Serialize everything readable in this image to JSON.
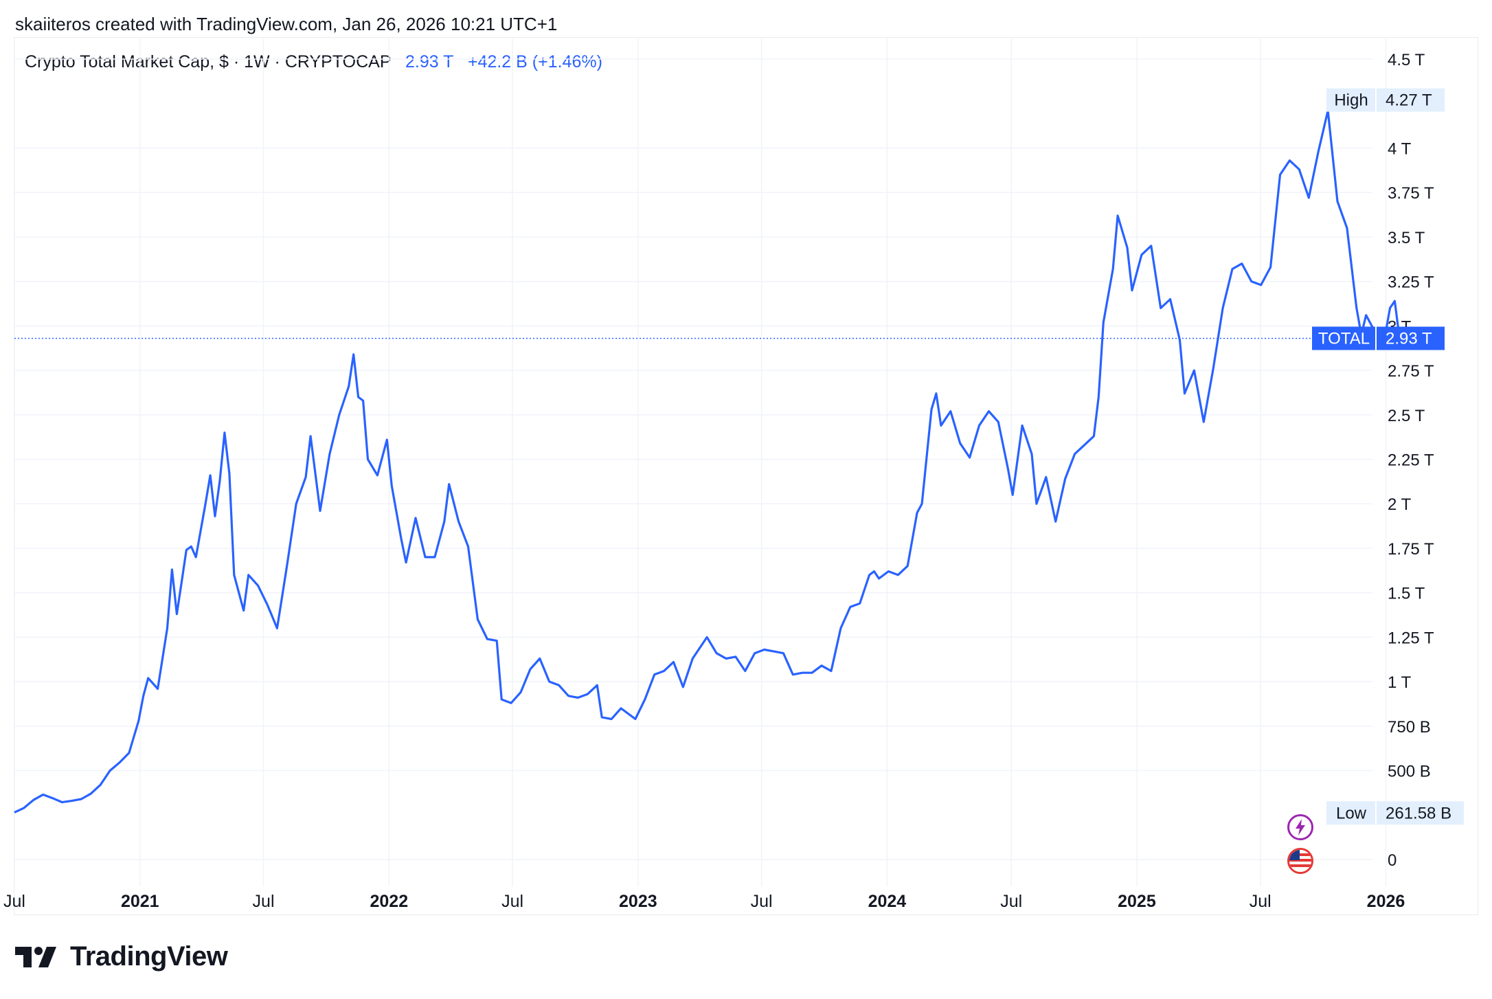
{
  "header": {
    "credit": "skaiiteros created with TradingView.com, Jan 26, 2026 10:21 UTC+1"
  },
  "legend": {
    "symbol": "Crypto Total Market Cap, $ · 1W · CRYPTOCAP",
    "value": "2.93 T",
    "change": "+42.2 B (+1.46%)"
  },
  "footer": {
    "brand": "TradingView"
  },
  "colors": {
    "line": "#2962ff",
    "grid": "#f0f3fa",
    "text": "#131722",
    "badge_bg": "#e3effd"
  },
  "icons": {
    "lightning": "lightning-icon",
    "flag": "us-flag-icon"
  },
  "chart_data": {
    "type": "line",
    "title": "Crypto Total Market Cap, $ · 1W · CRYPTOCAP",
    "y_unit": "USD",
    "ylim": [
      0,
      4500000000000
    ],
    "xlim": [
      "2020-07-01",
      "2026-03-15"
    ],
    "grid": true,
    "y_ticks": [
      {
        "value": 0,
        "label": "0"
      },
      {
        "value": 500000000000,
        "label": "500 B"
      },
      {
        "value": 750000000000,
        "label": "750 B"
      },
      {
        "value": 1000000000000,
        "label": "1 T"
      },
      {
        "value": 1250000000000,
        "label": "1.25 T"
      },
      {
        "value": 1500000000000,
        "label": "1.5 T"
      },
      {
        "value": 1750000000000,
        "label": "1.75 T"
      },
      {
        "value": 2000000000000,
        "label": "2 T"
      },
      {
        "value": 2250000000000,
        "label": "2.25 T"
      },
      {
        "value": 2500000000000,
        "label": "2.5 T"
      },
      {
        "value": 2750000000000,
        "label": "2.75 T"
      },
      {
        "value": 3000000000000,
        "label": "3 T"
      },
      {
        "value": 3250000000000,
        "label": "3.25 T"
      },
      {
        "value": 3500000000000,
        "label": "3.5 T"
      },
      {
        "value": 3750000000000,
        "label": "3.75 T"
      },
      {
        "value": 4000000000000,
        "label": "4 T"
      },
      {
        "value": 4500000000000,
        "label": "4.5 T"
      }
    ],
    "x_ticks": [
      {
        "date": "2020-07-01",
        "label": "Jul",
        "bold": false
      },
      {
        "date": "2021-01-01",
        "label": "2021",
        "bold": true
      },
      {
        "date": "2021-07-01",
        "label": "Jul",
        "bold": false
      },
      {
        "date": "2022-01-01",
        "label": "2022",
        "bold": true
      },
      {
        "date": "2022-07-01",
        "label": "Jul",
        "bold": false
      },
      {
        "date": "2023-01-01",
        "label": "2023",
        "bold": true
      },
      {
        "date": "2023-07-01",
        "label": "Jul",
        "bold": false
      },
      {
        "date": "2024-01-01",
        "label": "2024",
        "bold": true
      },
      {
        "date": "2024-07-01",
        "label": "Jul",
        "bold": false
      },
      {
        "date": "2025-01-01",
        "label": "2025",
        "bold": true
      },
      {
        "date": "2025-07-01",
        "label": "Jul",
        "bold": false
      },
      {
        "date": "2026-01-01",
        "label": "2026",
        "bold": true
      }
    ],
    "markers": {
      "high": {
        "label": "High",
        "value_label": "4.27 T",
        "value": 4270000000000
      },
      "low": {
        "label": "Low",
        "value_label": "261.58 B",
        "value": 261580000000
      },
      "last": {
        "label": "TOTAL",
        "value_label": "2.93 T",
        "value": 2930000000000
      }
    },
    "series": [
      {
        "points": [
          [
            "2020-07-01",
            265000000000
          ],
          [
            "2020-07-15",
            290000000000
          ],
          [
            "2020-07-29",
            335000000000
          ],
          [
            "2020-08-12",
            365000000000
          ],
          [
            "2020-08-26",
            345000000000
          ],
          [
            "2020-09-09",
            322000000000
          ],
          [
            "2020-09-23",
            330000000000
          ],
          [
            "2020-10-07",
            340000000000
          ],
          [
            "2020-10-21",
            370000000000
          ],
          [
            "2020-11-04",
            420000000000
          ],
          [
            "2020-11-18",
            500000000000
          ],
          [
            "2020-12-02",
            545000000000
          ],
          [
            "2020-12-16",
            600000000000
          ],
          [
            "2020-12-30",
            780000000000
          ],
          [
            "2021-01-06",
            920000000000
          ],
          [
            "2021-01-13",
            1020000000000
          ],
          [
            "2021-01-27",
            960000000000
          ],
          [
            "2021-02-10",
            1300000000000
          ],
          [
            "2021-02-17",
            1630000000000
          ],
          [
            "2021-02-24",
            1380000000000
          ],
          [
            "2021-03-03",
            1560000000000
          ],
          [
            "2021-03-10",
            1740000000000
          ],
          [
            "2021-03-17",
            1760000000000
          ],
          [
            "2021-03-24",
            1700000000000
          ],
          [
            "2021-04-07",
            2000000000000
          ],
          [
            "2021-04-14",
            2160000000000
          ],
          [
            "2021-04-21",
            1930000000000
          ],
          [
            "2021-04-28",
            2130000000000
          ],
          [
            "2021-05-05",
            2400000000000
          ],
          [
            "2021-05-12",
            2170000000000
          ],
          [
            "2021-05-19",
            1600000000000
          ],
          [
            "2021-06-02",
            1400000000000
          ],
          [
            "2021-06-09",
            1600000000000
          ],
          [
            "2021-06-23",
            1540000000000
          ],
          [
            "2021-07-07",
            1430000000000
          ],
          [
            "2021-07-21",
            1300000000000
          ],
          [
            "2021-08-04",
            1640000000000
          ],
          [
            "2021-08-18",
            2000000000000
          ],
          [
            "2021-09-01",
            2150000000000
          ],
          [
            "2021-09-08",
            2380000000000
          ],
          [
            "2021-09-22",
            1960000000000
          ],
          [
            "2021-10-06",
            2280000000000
          ],
          [
            "2021-10-20",
            2500000000000
          ],
          [
            "2021-11-03",
            2660000000000
          ],
          [
            "2021-11-10",
            2840000000000
          ],
          [
            "2021-11-17",
            2600000000000
          ],
          [
            "2021-11-24",
            2580000000000
          ],
          [
            "2021-12-01",
            2250000000000
          ],
          [
            "2021-12-15",
            2160000000000
          ],
          [
            "2021-12-29",
            2360000000000
          ],
          [
            "2022-01-05",
            2100000000000
          ],
          [
            "2022-01-19",
            1800000000000
          ],
          [
            "2022-01-26",
            1670000000000
          ],
          [
            "2022-02-09",
            1920000000000
          ],
          [
            "2022-02-23",
            1700000000000
          ],
          [
            "2022-03-09",
            1700000000000
          ],
          [
            "2022-03-23",
            1900000000000
          ],
          [
            "2022-03-30",
            2110000000000
          ],
          [
            "2022-04-13",
            1900000000000
          ],
          [
            "2022-04-27",
            1760000000000
          ],
          [
            "2022-05-11",
            1350000000000
          ],
          [
            "2022-05-25",
            1240000000000
          ],
          [
            "2022-06-08",
            1230000000000
          ],
          [
            "2022-06-15",
            900000000000
          ],
          [
            "2022-06-29",
            880000000000
          ],
          [
            "2022-07-13",
            940000000000
          ],
          [
            "2022-07-27",
            1070000000000
          ],
          [
            "2022-08-10",
            1130000000000
          ],
          [
            "2022-08-24",
            1000000000000
          ],
          [
            "2022-09-07",
            980000000000
          ],
          [
            "2022-09-21",
            920000000000
          ],
          [
            "2022-10-05",
            910000000000
          ],
          [
            "2022-10-19",
            930000000000
          ],
          [
            "2022-11-02",
            980000000000
          ],
          [
            "2022-11-09",
            800000000000
          ],
          [
            "2022-11-23",
            790000000000
          ],
          [
            "2022-12-07",
            850000000000
          ],
          [
            "2022-12-28",
            790000000000
          ],
          [
            "2023-01-11",
            900000000000
          ],
          [
            "2023-01-25",
            1040000000000
          ],
          [
            "2023-02-08",
            1060000000000
          ],
          [
            "2023-02-22",
            1110000000000
          ],
          [
            "2023-03-08",
            970000000000
          ],
          [
            "2023-03-22",
            1130000000000
          ],
          [
            "2023-04-12",
            1250000000000
          ],
          [
            "2023-04-26",
            1160000000000
          ],
          [
            "2023-05-10",
            1130000000000
          ],
          [
            "2023-05-24",
            1140000000000
          ],
          [
            "2023-06-07",
            1060000000000
          ],
          [
            "2023-06-21",
            1160000000000
          ],
          [
            "2023-07-05",
            1180000000000
          ],
          [
            "2023-07-19",
            1170000000000
          ],
          [
            "2023-08-02",
            1160000000000
          ],
          [
            "2023-08-16",
            1040000000000
          ],
          [
            "2023-08-30",
            1050000000000
          ],
          [
            "2023-09-13",
            1050000000000
          ],
          [
            "2023-09-27",
            1090000000000
          ],
          [
            "2023-10-11",
            1060000000000
          ],
          [
            "2023-10-25",
            1300000000000
          ],
          [
            "2023-11-08",
            1420000000000
          ],
          [
            "2023-11-22",
            1440000000000
          ],
          [
            "2023-12-06",
            1600000000000
          ],
          [
            "2023-12-13",
            1620000000000
          ],
          [
            "2023-12-20",
            1580000000000
          ],
          [
            "2024-01-03",
            1620000000000
          ],
          [
            "2024-01-17",
            1600000000000
          ],
          [
            "2024-01-31",
            1650000000000
          ],
          [
            "2024-02-14",
            1950000000000
          ],
          [
            "2024-02-21",
            2000000000000
          ],
          [
            "2024-03-06",
            2530000000000
          ],
          [
            "2024-03-13",
            2620000000000
          ],
          [
            "2024-03-20",
            2440000000000
          ],
          [
            "2024-04-03",
            2520000000000
          ],
          [
            "2024-04-17",
            2340000000000
          ],
          [
            "2024-05-01",
            2260000000000
          ],
          [
            "2024-05-15",
            2440000000000
          ],
          [
            "2024-05-29",
            2520000000000
          ],
          [
            "2024-06-12",
            2460000000000
          ],
          [
            "2024-06-26",
            2200000000000
          ],
          [
            "2024-07-03",
            2050000000000
          ],
          [
            "2024-07-17",
            2440000000000
          ],
          [
            "2024-07-31",
            2280000000000
          ],
          [
            "2024-08-07",
            2000000000000
          ],
          [
            "2024-08-21",
            2150000000000
          ],
          [
            "2024-09-04",
            1900000000000
          ],
          [
            "2024-09-18",
            2140000000000
          ],
          [
            "2024-10-02",
            2280000000000
          ],
          [
            "2024-10-16",
            2330000000000
          ],
          [
            "2024-10-30",
            2380000000000
          ],
          [
            "2024-11-06",
            2600000000000
          ],
          [
            "2024-11-13",
            3020000000000
          ],
          [
            "2024-11-27",
            3320000000000
          ],
          [
            "2024-12-04",
            3620000000000
          ],
          [
            "2024-12-18",
            3440000000000
          ],
          [
            "2024-12-25",
            3200000000000
          ],
          [
            "2025-01-08",
            3400000000000
          ],
          [
            "2025-01-22",
            3450000000000
          ],
          [
            "2025-02-05",
            3100000000000
          ],
          [
            "2025-02-19",
            3150000000000
          ],
          [
            "2025-03-05",
            2920000000000
          ],
          [
            "2025-03-12",
            2620000000000
          ],
          [
            "2025-03-26",
            2750000000000
          ],
          [
            "2025-04-09",
            2460000000000
          ],
          [
            "2025-04-23",
            2760000000000
          ],
          [
            "2025-05-07",
            3100000000000
          ],
          [
            "2025-05-21",
            3320000000000
          ],
          [
            "2025-06-04",
            3350000000000
          ],
          [
            "2025-06-18",
            3250000000000
          ],
          [
            "2025-07-02",
            3230000000000
          ],
          [
            "2025-07-16",
            3330000000000
          ],
          [
            "2025-07-30",
            3850000000000
          ],
          [
            "2025-08-13",
            3930000000000
          ],
          [
            "2025-08-27",
            3880000000000
          ],
          [
            "2025-09-10",
            3720000000000
          ],
          [
            "2025-09-24",
            3980000000000
          ],
          [
            "2025-10-08",
            4210000000000
          ],
          [
            "2025-10-22",
            3700000000000
          ],
          [
            "2025-11-05",
            3550000000000
          ],
          [
            "2025-11-19",
            3100000000000
          ],
          [
            "2025-11-26",
            2950000000000
          ],
          [
            "2025-12-03",
            3060000000000
          ],
          [
            "2025-12-17",
            2960000000000
          ],
          [
            "2025-12-31",
            2950000000000
          ],
          [
            "2026-01-07",
            3100000000000
          ],
          [
            "2026-01-14",
            3140000000000
          ],
          [
            "2026-01-21",
            2930000000000
          ],
          [
            "2026-01-26",
            2930000000000
          ]
        ]
      }
    ]
  }
}
